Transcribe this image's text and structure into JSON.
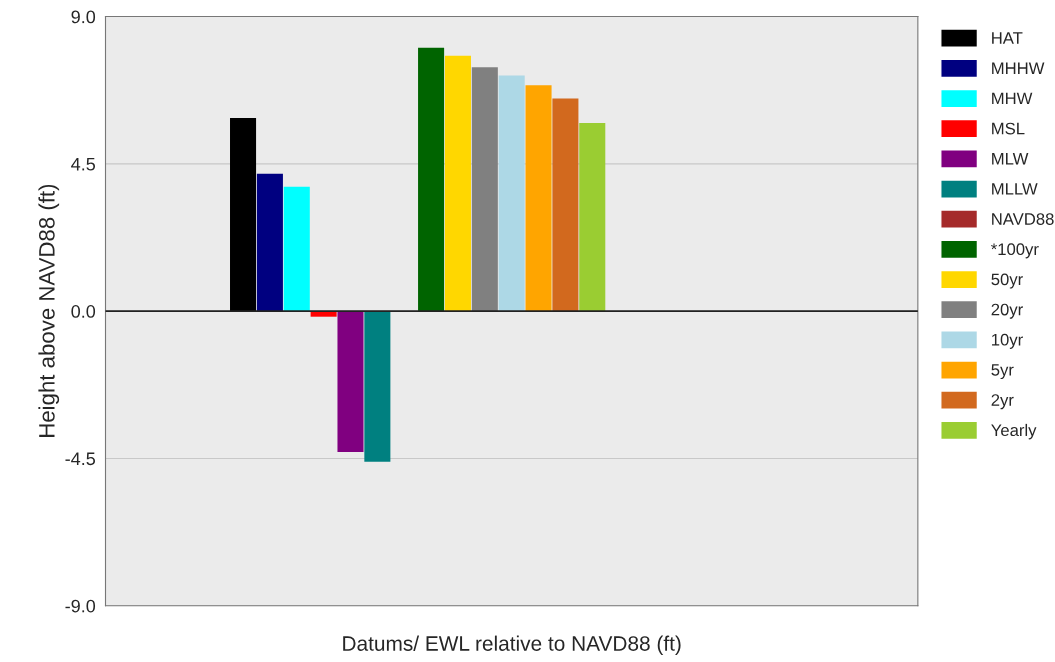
{
  "chart_data": {
    "type": "bar",
    "xlabel": "Datums/ EWL relative to NAVD88 (ft)",
    "ylabel": "Height above NAVD88 (ft)",
    "categories": [
      null
    ],
    "series": [
      {
        "name": "HAT",
        "color": "#000000",
        "values": [
          5.9
        ]
      },
      {
        "name": "MHHW",
        "color": "#000080",
        "values": [
          4.2
        ]
      },
      {
        "name": "MHW",
        "color": "#00ffff",
        "values": [
          3.8
        ]
      },
      {
        "name": "MSL",
        "color": "#ff0000",
        "values": [
          -0.17
        ]
      },
      {
        "name": "MLW",
        "color": "#800080",
        "values": [
          -4.3
        ]
      },
      {
        "name": "MLLW",
        "color": "#008080",
        "values": [
          -4.6
        ]
      },
      {
        "name": "NAVD88",
        "color": "#a52a2a",
        "values": [
          null
        ]
      },
      {
        "name": "*100yr",
        "color": "#006400",
        "values": [
          8.05
        ]
      },
      {
        "name": "50yr",
        "color": "#ffd700",
        "values": [
          7.8
        ]
      },
      {
        "name": "20yr",
        "color": "#808080",
        "values": [
          7.45
        ]
      },
      {
        "name": "10yr",
        "color": "#add8e6",
        "values": [
          7.2
        ]
      },
      {
        "name": "5yr",
        "color": "#ffa500",
        "values": [
          6.9
        ]
      },
      {
        "name": "2yr",
        "color": "#d2691e",
        "values": [
          6.5
        ]
      },
      {
        "name": "Yearly",
        "color": "#9acd32",
        "values": [
          5.75
        ]
      }
    ],
    "ylim": [
      -9.0,
      9.0
    ],
    "yticks": [
      {
        "value": -9.0,
        "label": "-9.0"
      },
      {
        "value": -4.5,
        "label": "-4.5"
      },
      {
        "value": 0,
        "label": "0.0"
      },
      {
        "value": 4.5,
        "label": "4.5"
      },
      {
        "value": 9.0,
        "label": "9.0"
      }
    ],
    "grid": "y",
    "legend": "right"
  }
}
